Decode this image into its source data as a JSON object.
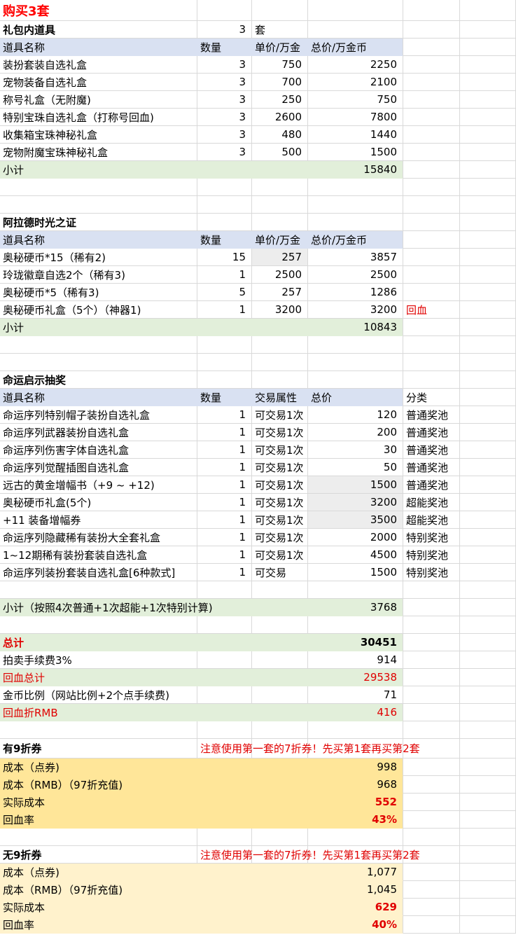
{
  "colors": {
    "blue": "#d9e1f2",
    "green": "#e2efda",
    "orange": "#ffe699",
    "yellow": "#fff2cc",
    "gray": "#ededed",
    "red": "#e00000"
  },
  "rows": [
    {
      "cells": [
        {
          "v": "购买3套",
          "title": true
        },
        "",
        "",
        "",
        "",
        ""
      ]
    },
    {
      "cells": [
        {
          "v": "礼包内道具",
          "b": true
        },
        "3",
        "套",
        "",
        "",
        ""
      ]
    },
    {
      "fill": "blue",
      "cells": [
        "道具名称",
        "数量",
        "单价/万金",
        "总价/万金币",
        "",
        ""
      ]
    },
    {
      "cells": [
        "装扮套装自选礼盒",
        "3",
        "750",
        "2250",
        "",
        ""
      ]
    },
    {
      "cells": [
        "宠物装备自选礼盒",
        "3",
        "700",
        "2100",
        "",
        ""
      ]
    },
    {
      "cells": [
        "称号礼盒（无附魔)",
        "3",
        "250",
        "750",
        "",
        ""
      ]
    },
    {
      "cells": [
        "特别宝珠自选礼盒（打称号回血)",
        "3",
        "2600",
        "7800",
        "",
        ""
      ]
    },
    {
      "cells": [
        "收集箱宝珠神秘礼盒",
        "3",
        "480",
        "1440",
        "",
        ""
      ]
    },
    {
      "cells": [
        "宠物附魔宝珠神秘礼盒",
        "3",
        "500",
        "1500",
        "",
        ""
      ]
    },
    {
      "fill": "green",
      "cells": [
        "小计",
        "",
        "",
        "15840",
        "",
        ""
      ]
    },
    {
      "cells": [
        "",
        "",
        "",
        "",
        "",
        ""
      ]
    },
    {
      "cells": [
        "",
        "",
        "",
        "",
        "",
        ""
      ]
    },
    {
      "cells": [
        {
          "v": "阿拉德时光之证",
          "b": true
        },
        "",
        "",
        "",
        "",
        ""
      ]
    },
    {
      "fill": "blue",
      "cells": [
        "道具名称",
        "数量",
        "单价/万金",
        "总价/万金币",
        "",
        ""
      ]
    },
    {
      "cells": [
        "奥秘硬币*15（稀有2)",
        "15",
        {
          "v": "257",
          "gray": true
        },
        "3857",
        "",
        ""
      ]
    },
    {
      "cells": [
        "玲珑徽章自选2个（稀有3)",
        "1",
        "2500",
        "2500",
        "",
        ""
      ]
    },
    {
      "cells": [
        "奥秘硬币*5（稀有3)",
        "5",
        "257",
        "1286",
        "",
        ""
      ]
    },
    {
      "cells": [
        "奥秘硬币礼盒（5个）（神器1)",
        "1",
        "3200",
        "3200",
        {
          "v": "回血",
          "c": "red"
        },
        ""
      ]
    },
    {
      "fill": "green",
      "cells": [
        "小计",
        "",
        "",
        "10843",
        "",
        ""
      ]
    },
    {
      "cells": [
        "",
        "",
        "",
        "",
        "",
        ""
      ]
    },
    {
      "cells": [
        "",
        "",
        "",
        "",
        "",
        ""
      ]
    },
    {
      "cells": [
        {
          "v": "命运启示抽奖",
          "b": true
        },
        "",
        "",
        "",
        "",
        ""
      ]
    },
    {
      "fill": "blue",
      "cells": [
        "道具名称",
        "数量",
        "交易属性",
        "总价",
        "分类",
        ""
      ]
    },
    {
      "cells": [
        "命运序列特别帽子装扮自选礼盒",
        "1",
        "可交易1次",
        "120",
        "普通奖池",
        ""
      ]
    },
    {
      "cells": [
        "命运序列武器装扮自选礼盒",
        "1",
        "可交易1次",
        "200",
        "普通奖池",
        ""
      ]
    },
    {
      "cells": [
        "命运序列伤害字体自选礼盒",
        "1",
        "可交易1次",
        "30",
        "普通奖池",
        ""
      ]
    },
    {
      "cells": [
        "命运序列觉醒插图自选礼盒",
        "1",
        "可交易1次",
        "50",
        "普通奖池",
        ""
      ]
    },
    {
      "cells": [
        "远古的黄金增幅书（+9 ~ +12)",
        "1",
        "可交易1次",
        {
          "v": "1500",
          "gray": true
        },
        "普通奖池",
        ""
      ]
    },
    {
      "cells": [
        "奥秘硬币礼盒(5个)",
        "1",
        "可交易1次",
        {
          "v": "3200",
          "gray": true
        },
        "超能奖池",
        ""
      ]
    },
    {
      "cells": [
        "+11 装备增幅券",
        "1",
        "可交易1次",
        {
          "v": "3500",
          "gray": true
        },
        "超能奖池",
        ""
      ]
    },
    {
      "cells": [
        "命运序列隐藏稀有装扮大全套礼盒",
        "1",
        "可交易1次",
        "2000",
        "特别奖池",
        ""
      ]
    },
    {
      "cells": [
        "1~12期稀有装扮套装自选礼盒",
        "1",
        "可交易1次",
        "4500",
        "特别奖池",
        ""
      ]
    },
    {
      "cells": [
        "命运序列装扮套装自选礼盒[6种款式]",
        "1",
        "可交易",
        "1500",
        "特别奖池",
        ""
      ]
    },
    {
      "cells": [
        "",
        "",
        "",
        "",
        "",
        ""
      ]
    },
    {
      "fill": "green",
      "cells": [
        "小计（按照4次普通+1次超能+1次特别计算)",
        "",
        "",
        "3768",
        "",
        ""
      ]
    },
    {
      "cells": [
        "",
        "",
        "",
        "",
        "",
        ""
      ]
    },
    {
      "fill": "green",
      "cells": [
        {
          "v": "总计",
          "c": "red",
          "b": true
        },
        "",
        "",
        {
          "v": "30451",
          "b": true
        },
        "",
        ""
      ]
    },
    {
      "cells": [
        "拍卖手续费3%",
        "",
        "",
        "914",
        "",
        ""
      ]
    },
    {
      "fill": "green",
      "cells": [
        {
          "v": "回血总计",
          "c": "red"
        },
        "",
        "",
        {
          "v": "29538",
          "c": "red"
        },
        "",
        ""
      ]
    },
    {
      "cells": [
        "金币比例（网站比例+2个点手续费)",
        "",
        "",
        "71",
        "",
        ""
      ]
    },
    {
      "fill": "green",
      "cells": [
        {
          "v": "回血折RMB",
          "c": "red"
        },
        "",
        "",
        {
          "v": "416",
          "c": "red"
        },
        "",
        ""
      ]
    },
    {
      "cells": [
        "",
        "",
        "",
        "",
        "",
        ""
      ]
    },
    {
      "mid": true,
      "cells": [
        {
          "v": "有9折券",
          "b": true
        },
        {
          "v": "注意使用第一套的7折券！先买第1套再买第2套",
          "c": "red",
          "left": true
        },
        "",
        "",
        "",
        ""
      ]
    },
    {
      "fill": "orange",
      "cells": [
        "成本（点券)",
        "",
        "",
        "998",
        "",
        ""
      ]
    },
    {
      "fill": "orange",
      "cells": [
        "成本（RMB）（97折充值)",
        "",
        "",
        "968",
        "",
        ""
      ]
    },
    {
      "fill": "orange",
      "cells": [
        "实际成本",
        "",
        "",
        {
          "v": "552",
          "c": "red",
          "b": true
        },
        "",
        ""
      ]
    },
    {
      "fill": "orange",
      "cells": [
        "回血率",
        "",
        "",
        {
          "v": "43%",
          "c": "red",
          "b": true
        },
        "",
        ""
      ]
    },
    {
      "cells": [
        "",
        "",
        "",
        "",
        "",
        ""
      ]
    },
    {
      "cells": [
        {
          "v": "无9折券",
          "b": true
        },
        {
          "v": "注意使用第一套的7折券！先买第1套再买第2套",
          "c": "red",
          "left": true
        },
        "",
        "",
        "",
        ""
      ]
    },
    {
      "fill": "yellow",
      "cells": [
        "成本（点券)",
        "",
        "",
        "1,077",
        "",
        ""
      ]
    },
    {
      "fill": "yellow",
      "cells": [
        "成本（RMB）（97折充值)",
        "",
        "",
        "1,045",
        "",
        ""
      ]
    },
    {
      "fill": "yellow",
      "cells": [
        "实际成本",
        "",
        "",
        {
          "v": "629",
          "c": "red",
          "b": true
        },
        "",
        ""
      ]
    },
    {
      "fill": "yellow",
      "cells": [
        "回血率",
        "",
        "",
        {
          "v": "40%",
          "c": "red",
          "b": true
        },
        "",
        ""
      ]
    }
  ]
}
